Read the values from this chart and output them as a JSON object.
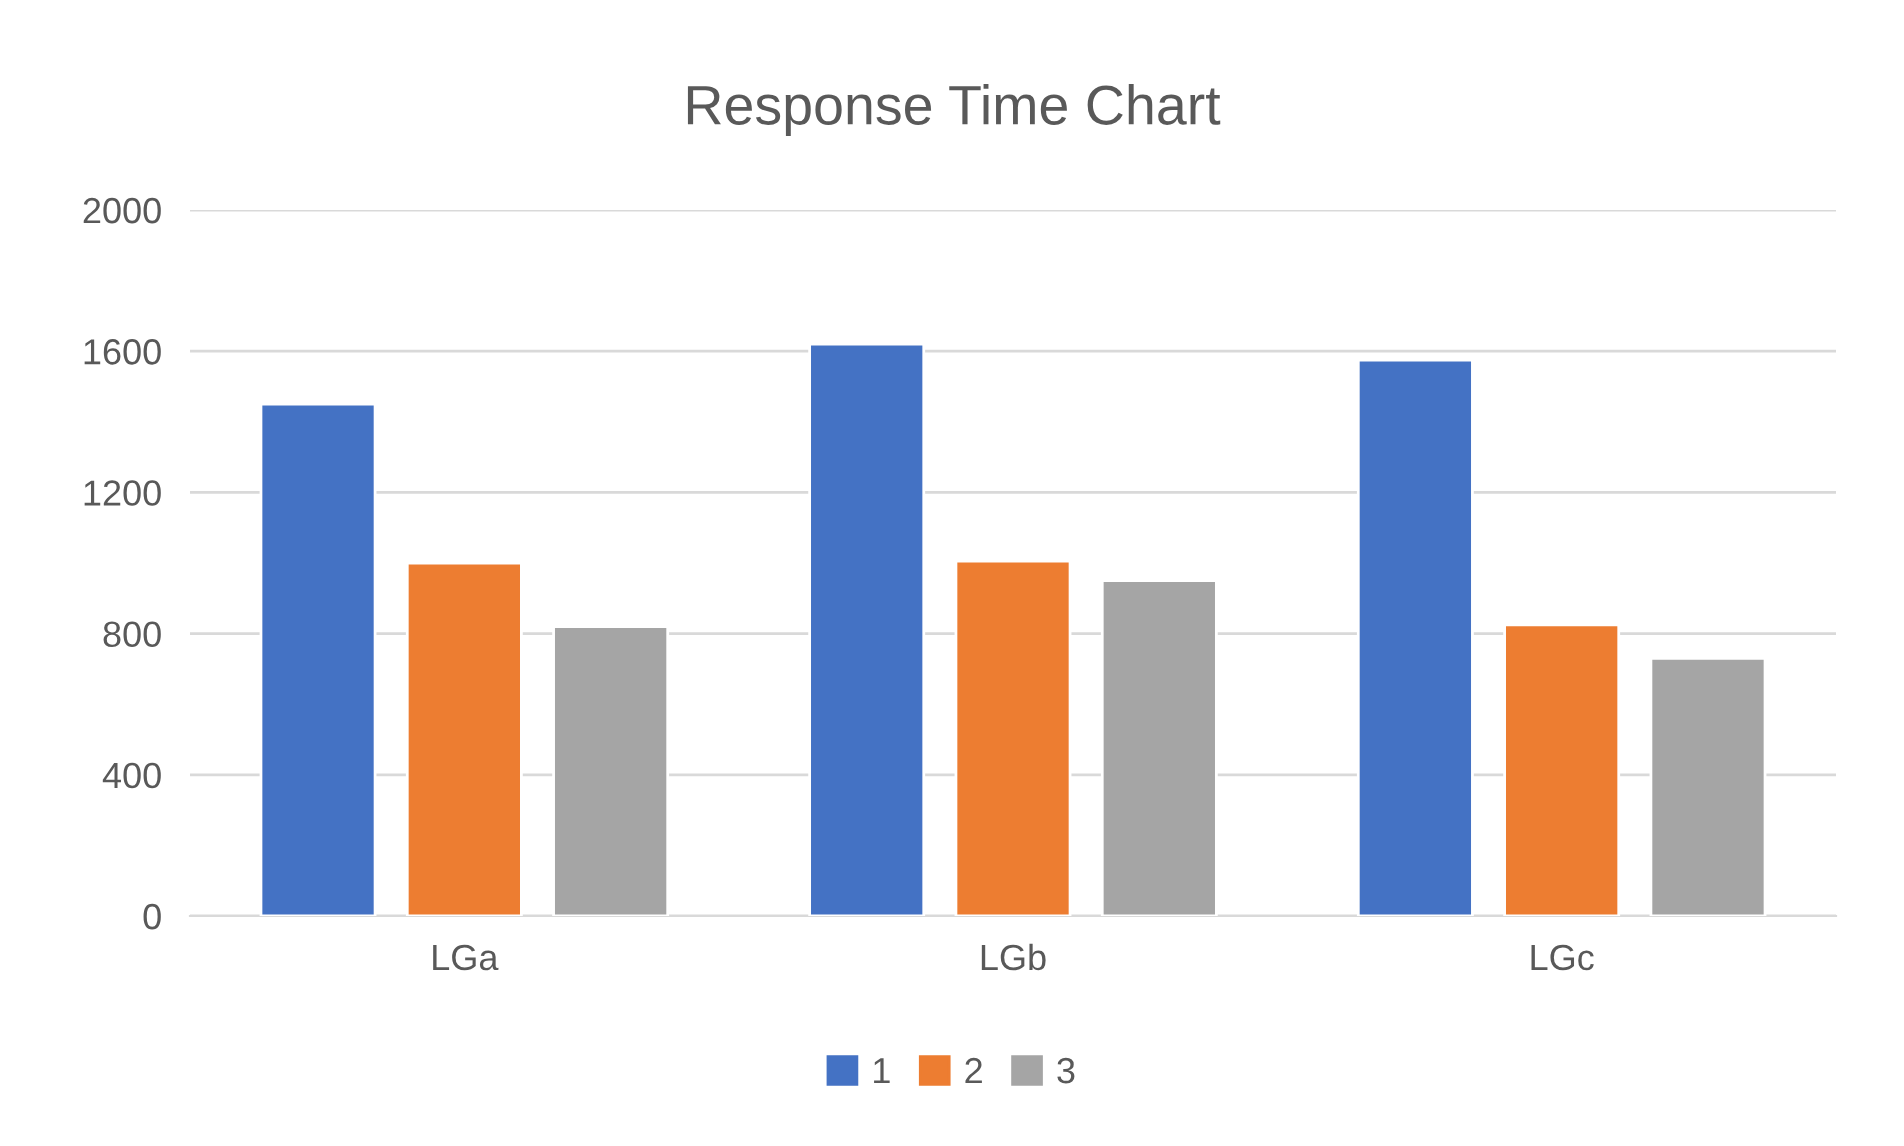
{
  "chart_data": {
    "type": "bar",
    "title": "Response Time Chart",
    "categories": [
      "LGa",
      "LGb",
      "LGc"
    ],
    "series": [
      {
        "name": "1",
        "color": "#4472c4",
        "values": [
          1450,
          1620,
          1575
        ]
      },
      {
        "name": "2",
        "color": "#ed7d31",
        "values": [
          1000,
          1005,
          825
        ]
      },
      {
        "name": "3",
        "color": "#a5a5a5",
        "values": [
          820,
          950,
          730
        ]
      }
    ],
    "ylim": [
      0,
      2000
    ],
    "yticks": [
      0,
      400,
      800,
      1200,
      1600,
      2000
    ],
    "grid": "y",
    "legend": "bottom"
  }
}
